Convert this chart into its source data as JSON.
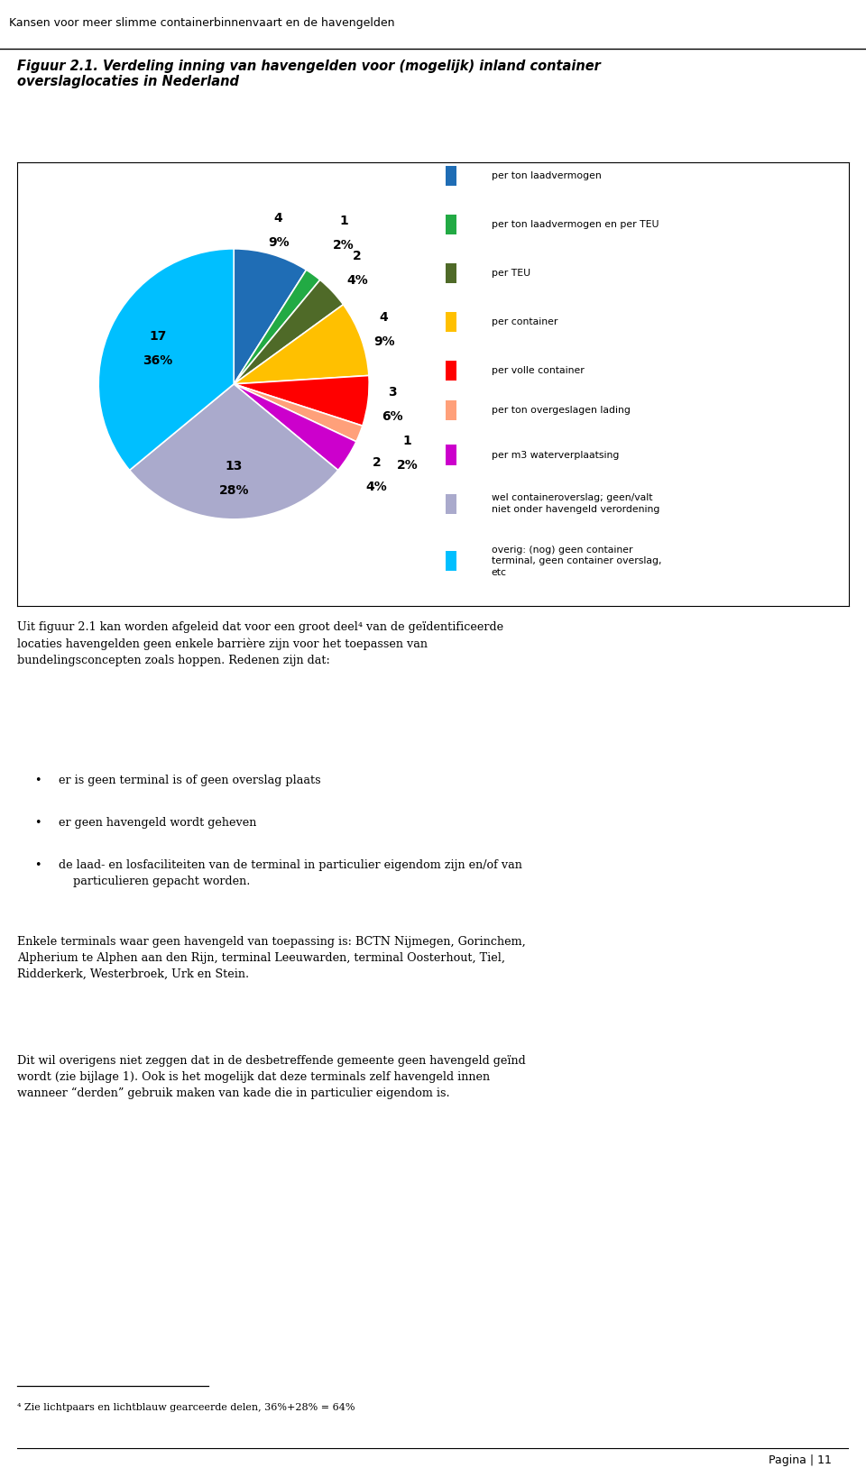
{
  "slices": [
    {
      "label": "per ton laadvermogen",
      "count": 4,
      "pct": 9,
      "color": "#1F6DB5"
    },
    {
      "label": "per ton laadvermogen en per TEU",
      "count": 1,
      "pct": 2,
      "color": "#22AA44"
    },
    {
      "label": "per TEU",
      "count": 2,
      "pct": 4,
      "color": "#4F6A28"
    },
    {
      "label": "per container",
      "count": 4,
      "pct": 9,
      "color": "#FFC000"
    },
    {
      "label": "per volle container",
      "count": 3,
      "pct": 6,
      "color": "#FF0000"
    },
    {
      "label": "per ton overgeslagen lading",
      "count": 1,
      "pct": 2,
      "color": "#FFA07A"
    },
    {
      "label": "per m3 waterverplaatsing",
      "count": 2,
      "pct": 4,
      "color": "#CC00CC"
    },
    {
      "label": "wel containeroverslag; geen/valt\nniet onder havengeld verordening",
      "count": 13,
      "pct": 28,
      "color": "#AAAACC"
    },
    {
      "label": "overig: (nog) geen container\nterminal, geen container overslag,\netc",
      "count": 17,
      "pct": 36,
      "color": "#00BFFF"
    }
  ],
  "figure_title": "Figuur 2.1. Verdeling inning van havengelden voor (mogelijk) inland container\noverslaglocaties in Nederland",
  "header_text": "Kansen voor meer slimme containerbinnenvaart en de havengelden",
  "footer_text": "Pagina | 11",
  "body_bullets": [
    "er is geen terminal is of geen overslag plaats",
    "er geen havengeld wordt geheven",
    "de laad- en losfaciliteiten van de terminal in particulier eigendom zijn en/of van\n    particulieren gepacht worden."
  ],
  "para1": "Uit figuur 2.1 kan worden afgeleid dat voor een groot deel⁴ van de geïdentificeerde\nlocaties havengelden geen enkele barrière zijn voor het toepassen van\nbundelingsconcepten zoals hoppen. Redenen zijn dat:",
  "para2": "Enkele terminals waar geen havengeld van toepassing is: BCTN Nijmegen, Gorinchem,\nAlpherium te Alphen aan den Rijn, terminal Leeuwarden, terminal Oosterhout, Tiel,\nRidderkerk, Westerbroek, Urk en Stein.",
  "para3": "Dit wil overigens niet zeggen dat in de desbetreffende gemeente geen havengeld geïnd\nwordt (zie bijlage 1). Ook is het mogelijk dat deze terminals zelf havengeld innen\nwanneer “derden” gebruik maken van kade die in particulier eigendom is.",
  "footnote": "⁴ Zie lichtpaars en lichtblauw gearceerde delen, 36%+28% = 64%",
  "legend_items": [
    {
      "color": "#1F6DB5",
      "text": "per ton laadvermogen"
    },
    {
      "color": "#22AA44",
      "text": "per ton laadvermogen en per TEU"
    },
    {
      "color": "#4F6A28",
      "text": "per TEU"
    },
    {
      "color": "#FFC000",
      "text": "per container"
    },
    {
      "color": "#FF0000",
      "text": "per volle container"
    },
    {
      "color": "#FFA07A",
      "text": "per ton overgeslagen lading"
    },
    {
      "color": "#CC00CC",
      "text": "per m3 waterverplaatsing"
    },
    {
      "color": "#AAAACC",
      "text": "wel containeroverslag; geen/valt\nniet onder havengeld verordening"
    },
    {
      "color": "#00BFFF",
      "text": "overig: (nog) geen container\nterminal, geen container overslag,\netc"
    }
  ]
}
